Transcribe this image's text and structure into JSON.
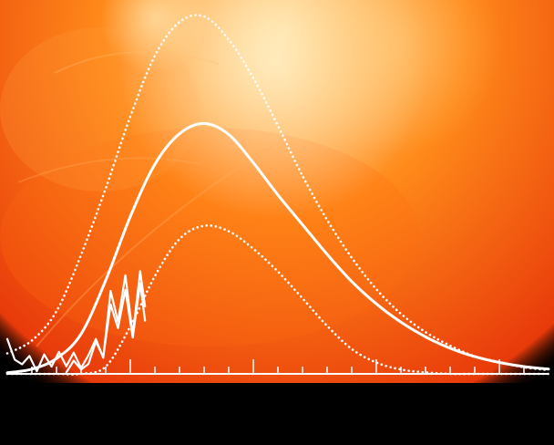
{
  "colors": {
    "background": "#000000",
    "sun_core": "#ffd890",
    "sun_mid": "#ff8a1a",
    "sun_edge": "#e83a0a",
    "curves": "#ffffff"
  },
  "chart_data": {
    "type": "line",
    "title": "",
    "xlabel": "",
    "ylabel": "",
    "grid": false,
    "legend": "none",
    "xlim": [
      0,
      22
    ],
    "ylim": [
      0,
      100
    ],
    "xticks_major": [
      5,
      10,
      15,
      20
    ],
    "xticks_minor": [
      1,
      2,
      3,
      4,
      6,
      7,
      8,
      9,
      11,
      12,
      13,
      14,
      16,
      17,
      18,
      19,
      21
    ],
    "background_image": "solar-disk-image",
    "series": [
      {
        "style": "dotted",
        "x": [
          0,
          1,
          2,
          3,
          4,
          5,
          6,
          7,
          8,
          9,
          10,
          11,
          12,
          13,
          14,
          15,
          16,
          17,
          18,
          19,
          20,
          21,
          22
        ],
        "y": [
          5.6,
          9.1,
          17.1,
          32.5,
          50.6,
          70.2,
          86.8,
          96.0,
          97.5,
          91.2,
          80.7,
          67.7,
          54.0,
          42.0,
          31.7,
          23.1,
          16.4,
          11.4,
          7.7,
          4.8,
          3.2,
          1.8,
          1.0
        ]
      },
      {
        "style": "solid",
        "x": [
          0,
          1,
          2,
          3,
          4,
          5,
          6,
          7,
          8,
          9,
          10,
          11,
          12,
          13,
          14,
          15,
          16,
          17,
          18,
          19,
          20,
          21,
          22
        ],
        "y": [
          0.3,
          1.3,
          4.2,
          10.9,
          25.5,
          42.9,
          57.2,
          65.5,
          68.3,
          65.3,
          57.6,
          48.8,
          40.7,
          32.6,
          25.2,
          19.1,
          14.1,
          10.1,
          7.0,
          4.7,
          3.1,
          2.0,
          1.3
        ]
      },
      {
        "style": "dotted",
        "x": [
          0,
          1,
          2,
          3,
          4,
          5,
          6,
          7,
          8,
          9,
          10,
          11,
          12,
          13,
          14,
          15,
          16,
          17,
          18,
          19,
          20,
          21,
          22
        ],
        "y": [
          0,
          0,
          0,
          0,
          2.0,
          12.9,
          26.7,
          36.8,
          40.4,
          38.9,
          34.1,
          27.9,
          20.6,
          13.1,
          6.8,
          3.1,
          1.2,
          0.4,
          0,
          0,
          0,
          0,
          0
        ]
      },
      {
        "style": "jagged",
        "x": [
          0,
          0.3,
          0.6,
          0.9,
          1.2,
          1.5,
          1.8,
          2.1,
          2.4,
          2.7,
          3.0,
          3.3,
          3.6,
          3.9,
          4.2,
          4.5,
          4.8,
          5.1,
          5.4,
          5.6
        ],
        "y": [
          9.5,
          3.9,
          2.6,
          4.9,
          0.7,
          5.3,
          2.0,
          6.0,
          2.1,
          5.8,
          1.6,
          5.1,
          9.5,
          4.4,
          22.6,
          14.3,
          26.9,
          10.6,
          28.0,
          18.4
        ]
      },
      {
        "style": "jagged",
        "x": [
          2.4,
          2.7,
          3.0,
          3.3,
          3.6,
          3.9,
          4.2,
          4.5,
          4.8,
          5.1,
          5.4,
          5.6
        ],
        "y": [
          0.4,
          3.6,
          1.2,
          2.7,
          8.8,
          4.6,
          18.9,
          12.5,
          22.9,
          9.9,
          24.7,
          14.5
        ]
      }
    ]
  }
}
